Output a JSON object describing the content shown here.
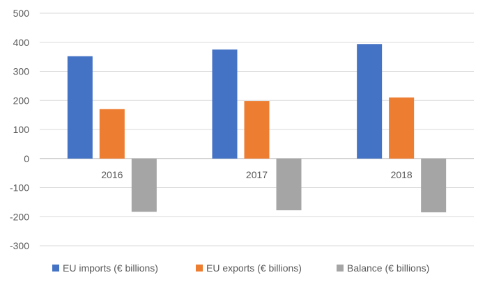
{
  "chart_data": {
    "type": "bar",
    "categories": [
      "2016",
      "2017",
      "2018"
    ],
    "series": [
      {
        "name": "EU imports (€ billions)",
        "values": [
          352,
          375,
          394
        ],
        "color": "#4472C4"
      },
      {
        "name": "EU exports (€ billions)",
        "values": [
          170,
          198,
          210
        ],
        "color": "#ED7D31"
      },
      {
        "name": "Balance (€ billions)",
        "values": [
          -183,
          -178,
          -185
        ],
        "color": "#A5A5A5"
      }
    ],
    "y_ticks": [
      "500",
      "400",
      "300",
      "200",
      "100",
      "0",
      "-100",
      "-200",
      "-300"
    ],
    "ylim": [
      -300,
      500
    ],
    "grid": true,
    "legend_position": "bottom",
    "title": "",
    "xlabel": "",
    "ylabel": ""
  }
}
